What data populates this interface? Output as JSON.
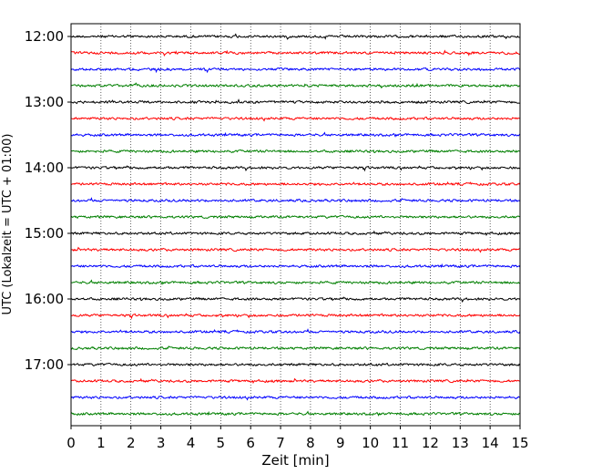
{
  "chart_data": {
    "type": "line",
    "title": "",
    "xlabel": "Zeit  [min]",
    "ylabel": "UTC (Lokalzeit = UTC + 01:00)",
    "xlim": [
      0,
      15
    ],
    "x_ticks": [
      "0",
      "1",
      "2",
      "3",
      "4",
      "5",
      "6",
      "7",
      "8",
      "9",
      "10",
      "11",
      "12",
      "13",
      "14",
      "15"
    ],
    "hour_labels": [
      "12:00",
      "13:00",
      "14:00",
      "15:00",
      "16:00",
      "17:00"
    ],
    "rows_per_hour": 4,
    "row_count": 24,
    "colors": [
      "#000000",
      "#ff0000",
      "#0000ff",
      "#007f00"
    ],
    "grid": "vertical dotted at each minute",
    "legend": "none"
  }
}
